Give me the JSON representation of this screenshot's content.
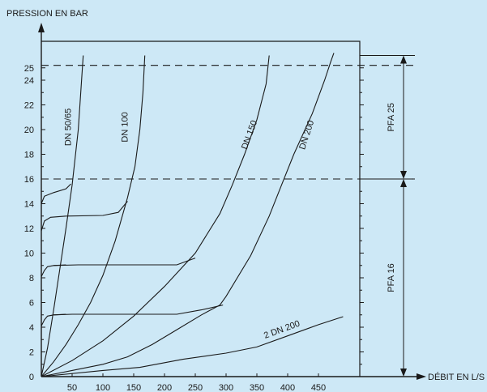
{
  "chart_data": {
    "type": "line",
    "ylabel": "PRESSION EN BAR",
    "xlabel": "DÉBIT EN L/S",
    "xlim": [
      0,
      500
    ],
    "ylim": [
      0,
      26.5
    ],
    "x_ticks": [
      50,
      100,
      150,
      200,
      250,
      300,
      350,
      400,
      450
    ],
    "y_ticks": [
      0,
      2,
      4,
      6,
      8,
      10,
      12,
      14,
      16,
      18,
      20,
      22,
      24,
      25
    ],
    "reference_lines": [
      {
        "y": 25.2,
        "style": "dashed"
      },
      {
        "y": 16,
        "style": "dashed"
      }
    ],
    "pressure_ranges": [
      {
        "label": "PFA 25",
        "y_from": 16,
        "y_to": 26
      },
      {
        "label": "PFA 16",
        "y_from": 0,
        "y_to": 16
      }
    ],
    "series": [
      {
        "name": "DN 50/65",
        "segments": [
          [
            [
              0,
              0
            ],
            [
              10,
              2.3
            ],
            [
              20,
              5.4
            ],
            [
              30,
              8.7
            ],
            [
              40,
              12
            ],
            [
              50,
              15.5
            ],
            [
              60,
              20
            ],
            [
              68,
              26
            ]
          ],
          [
            [
              0,
              4.1
            ],
            [
              5,
              4.6
            ],
            [
              10,
              4.9
            ],
            [
              20,
              5.0
            ],
            [
              40,
              5.05
            ]
          ],
          [
            [
              0,
              8.1
            ],
            [
              5,
              8.6
            ],
            [
              10,
              8.9
            ],
            [
              20,
              9.0
            ],
            [
              40,
              9.05
            ]
          ],
          [
            [
              0,
              11.8
            ],
            [
              5,
              12.6
            ],
            [
              15,
              12.9
            ],
            [
              40,
              13.0
            ]
          ],
          [
            [
              0,
              14
            ],
            [
              5,
              14.6
            ],
            [
              20,
              14.9
            ],
            [
              40,
              15.2
            ],
            [
              48,
              15.6
            ]
          ]
        ]
      },
      {
        "name": "DN 100",
        "segments": [
          [
            [
              0,
              0
            ],
            [
              20,
              1.2
            ],
            [
              40,
              2.6
            ],
            [
              60,
              4.2
            ],
            [
              80,
              6
            ],
            [
              100,
              8.2
            ],
            [
              120,
              11
            ],
            [
              140,
              14.5
            ],
            [
              152,
              17
            ],
            [
              160,
              20
            ],
            [
              165,
              23
            ],
            [
              168,
              26
            ]
          ],
          [
            [
              20,
              5.0
            ],
            [
              50,
              5.05
            ],
            [
              100,
              5.05
            ]
          ],
          [
            [
              20,
              9.0
            ],
            [
              60,
              9.05
            ],
            [
              100,
              9.05
            ]
          ],
          [
            [
              40,
              13.0
            ],
            [
              100,
              13.05
            ],
            [
              125,
              13.3
            ],
            [
              140,
              14.2
            ]
          ]
        ]
      },
      {
        "name": "DN 150",
        "segments": [
          [
            [
              0,
              0
            ],
            [
              50,
              1.3
            ],
            [
              100,
              2.9
            ],
            [
              150,
              4.9
            ],
            [
              200,
              7.3
            ],
            [
              250,
              10
            ],
            [
              290,
              13.2
            ],
            [
              310,
              15.5
            ],
            [
              330,
              18
            ],
            [
              350,
              20.8
            ],
            [
              365,
              23.7
            ],
            [
              370,
              26
            ]
          ],
          [
            [
              100,
              5.05
            ],
            [
              150,
              5.05
            ],
            [
              220,
              5.05
            ],
            [
              260,
              5.4
            ],
            [
              295,
              5.8
            ]
          ],
          [
            [
              100,
              9.05
            ],
            [
              160,
              9.05
            ],
            [
              220,
              9.05
            ],
            [
              250,
              9.6
            ]
          ]
        ]
      },
      {
        "name": "DN 200",
        "segments": [
          [
            [
              0,
              0
            ],
            [
              50,
              0.5
            ],
            [
              100,
              1.0
            ],
            [
              140,
              1.6
            ],
            [
              180,
              2.6
            ],
            [
              220,
              3.8
            ],
            [
              260,
              5
            ],
            [
              290,
              5.8
            ],
            [
              300,
              6.5
            ],
            [
              340,
              9.8
            ],
            [
              370,
              13
            ],
            [
              390,
              15.5
            ],
            [
              410,
              18
            ],
            [
              440,
              21.3
            ],
            [
              460,
              24
            ],
            [
              470,
              25.5
            ],
            [
              475,
              26.2
            ]
          ]
        ]
      },
      {
        "name": "2 DN 200",
        "segments": [
          [
            [
              0,
              0
            ],
            [
              100,
              0.5
            ],
            [
              160,
              0.75
            ],
            [
              230,
              1.4
            ],
            [
              300,
              1.9
            ],
            [
              350,
              2.4
            ],
            [
              400,
              3.3
            ],
            [
              450,
              4.2
            ],
            [
              490,
              4.85
            ]
          ]
        ]
      }
    ],
    "series_labels": [
      {
        "text": "DN 50/65",
        "x": 48,
        "y": 20.2,
        "angle": -90
      },
      {
        "text": "DN 100",
        "x": 140,
        "y": 20.2,
        "angle": -90
      },
      {
        "text": "DN 150",
        "x": 342,
        "y": 19.5,
        "angle": -70
      },
      {
        "text": "DN 200",
        "x": 435,
        "y": 19.5,
        "angle": -72
      },
      {
        "text": "2 DN 200",
        "x": 392,
        "y": 3.6,
        "angle": -20
      }
    ]
  }
}
